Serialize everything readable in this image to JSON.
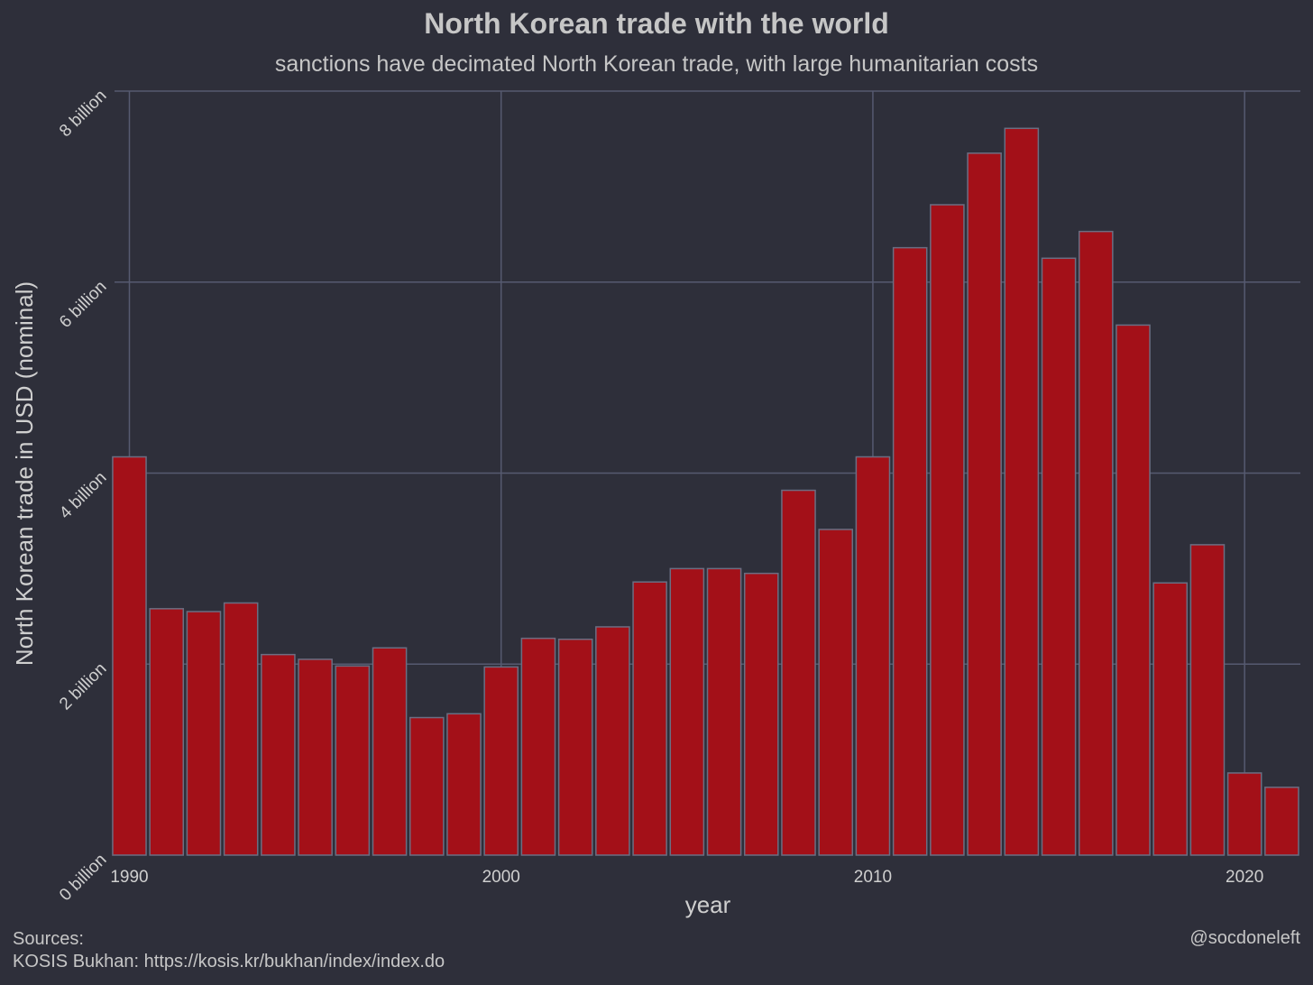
{
  "chart_data": {
    "type": "bar",
    "title": "North Korean trade with the world",
    "subtitle": "sanctions have decimated North Korean trade, with large humanitarian costs",
    "xlabel": "year",
    "ylabel": "North Korean trade in USD (nominal)",
    "ylim": [
      0,
      8000000000
    ],
    "xlim": [
      1989.6,
      2021.5
    ],
    "x_ticks": [
      1990,
      2000,
      2010,
      2020
    ],
    "y_ticks": [
      {
        "value": 0,
        "label": "0 billion"
      },
      {
        "value": 2000000000,
        "label": "2 billion"
      },
      {
        "value": 4000000000,
        "label": "4 billion"
      },
      {
        "value": 6000000000,
        "label": "6 billion"
      },
      {
        "value": 8000000000,
        "label": "8 billion"
      }
    ],
    "grid": true,
    "bar_color": "#a31018",
    "bar_edge_color": "#6b6e82",
    "grid_color": "#565a70",
    "background": "#2e2f3a",
    "x": [
      1990,
      1991,
      1992,
      1993,
      1994,
      1995,
      1996,
      1997,
      1998,
      1999,
      2000,
      2001,
      2002,
      2003,
      2004,
      2005,
      2006,
      2007,
      2008,
      2009,
      2010,
      2011,
      2012,
      2013,
      2014,
      2015,
      2016,
      2017,
      2018,
      2019,
      2020,
      2021
    ],
    "values": [
      4170000000,
      2580000000,
      2550000000,
      2640000000,
      2100000000,
      2050000000,
      1980000000,
      2170000000,
      1440000000,
      1480000000,
      1970000000,
      2270000000,
      2260000000,
      2390000000,
      2860000000,
      3000000000,
      3000000000,
      2950000000,
      3820000000,
      3410000000,
      4170000000,
      6360000000,
      6810000000,
      7350000000,
      7610000000,
      6250000000,
      6530000000,
      5550000000,
      2850000000,
      3250000000,
      860000000,
      710000000
    ]
  },
  "footer": {
    "sources_label": "Sources:",
    "sources_text": "KOSIS Bukhan: https://kosis.kr/bukhan/index/index.do",
    "credit": "@socdoneleft"
  }
}
